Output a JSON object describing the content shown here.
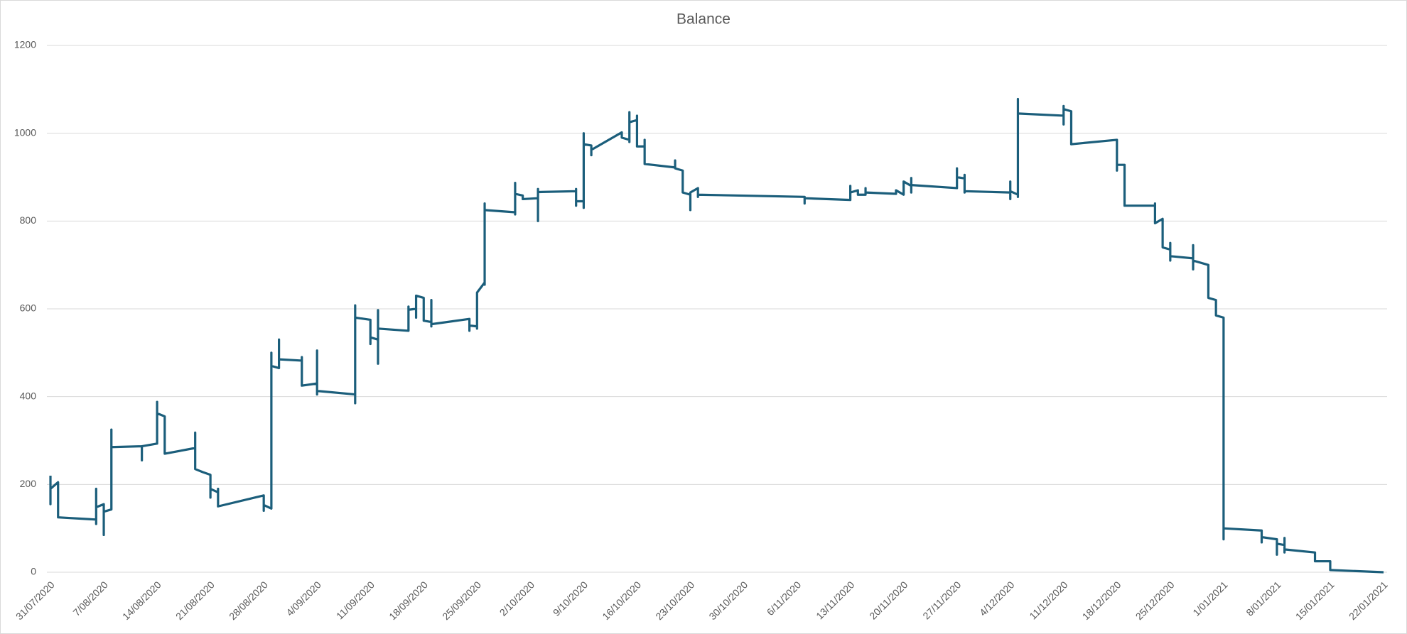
{
  "chart_data": {
    "type": "line",
    "title": "Balance",
    "color": "#1b5e7b",
    "grid": true,
    "ylim": [
      0,
      1200
    ],
    "yticks": [
      0,
      200,
      400,
      600,
      800,
      1000,
      1200
    ],
    "xlim": [
      "2020-07-31",
      "2021-01-22"
    ],
    "xticks": [
      {
        "value": "2020-07-31",
        "label": "31/07/2020"
      },
      {
        "value": "2020-08-07",
        "label": "7/08/2020"
      },
      {
        "value": "2020-08-14",
        "label": "14/08/2020"
      },
      {
        "value": "2020-08-21",
        "label": "21/08/2020"
      },
      {
        "value": "2020-08-28",
        "label": "28/08/2020"
      },
      {
        "value": "2020-09-04",
        "label": "4/09/2020"
      },
      {
        "value": "2020-09-11",
        "label": "11/09/2020"
      },
      {
        "value": "2020-09-18",
        "label": "18/09/2020"
      },
      {
        "value": "2020-09-25",
        "label": "25/09/2020"
      },
      {
        "value": "2020-10-02",
        "label": "2/10/2020"
      },
      {
        "value": "2020-10-09",
        "label": "9/10/2020"
      },
      {
        "value": "2020-10-16",
        "label": "16/10/2020"
      },
      {
        "value": "2020-10-23",
        "label": "23/10/2020"
      },
      {
        "value": "2020-10-30",
        "label": "30/10/2020"
      },
      {
        "value": "2020-11-06",
        "label": "6/11/2020"
      },
      {
        "value": "2020-11-13",
        "label": "13/11/2020"
      },
      {
        "value": "2020-11-20",
        "label": "20/11/2020"
      },
      {
        "value": "2020-11-27",
        "label": "27/11/2020"
      },
      {
        "value": "2020-12-04",
        "label": "4/12/2020"
      },
      {
        "value": "2020-12-11",
        "label": "11/12/2020"
      },
      {
        "value": "2020-12-18",
        "label": "18/12/2020"
      },
      {
        "value": "2020-12-25",
        "label": "25/12/2020"
      },
      {
        "value": "2021-01-01",
        "label": "1/01/2021"
      },
      {
        "value": "2021-01-08",
        "label": "8/01/2021"
      },
      {
        "value": "2021-01-15",
        "label": "15/01/2021"
      },
      {
        "value": "2021-01-22",
        "label": "22/01/2021"
      }
    ],
    "x": [
      "2020-07-31",
      "2020-07-31",
      "2020-07-31",
      "2020-08-01",
      "2020-08-01",
      "2020-08-06",
      "2020-08-06",
      "2020-08-06",
      "2020-08-06",
      "2020-08-07",
      "2020-08-07",
      "2020-08-07",
      "2020-08-08",
      "2020-08-08",
      "2020-08-08",
      "2020-08-12",
      "2020-08-12",
      "2020-08-12",
      "2020-08-14",
      "2020-08-14",
      "2020-08-14",
      "2020-08-15",
      "2020-08-15",
      "2020-08-19",
      "2020-08-19",
      "2020-08-19",
      "2020-08-20",
      "2020-08-21",
      "2020-08-21",
      "2020-08-21",
      "2020-08-22",
      "2020-08-22",
      "2020-08-22",
      "2020-08-28",
      "2020-08-28",
      "2020-08-28",
      "2020-08-29",
      "2020-08-29",
      "2020-08-29",
      "2020-08-30",
      "2020-08-30",
      "2020-08-30",
      "2020-09-02",
      "2020-09-02",
      "2020-09-02",
      "2020-09-04",
      "2020-09-04",
      "2020-09-04",
      "2020-09-04",
      "2020-09-09",
      "2020-09-09",
      "2020-09-09",
      "2020-09-09",
      "2020-09-11",
      "2020-09-11",
      "2020-09-11",
      "2020-09-12",
      "2020-09-12",
      "2020-09-12",
      "2020-09-12",
      "2020-09-16",
      "2020-09-16",
      "2020-09-16",
      "2020-09-17",
      "2020-09-17",
      "2020-09-17",
      "2020-09-18",
      "2020-09-18",
      "2020-09-19",
      "2020-09-19",
      "2020-09-19",
      "2020-09-19",
      "2020-09-24",
      "2020-09-24",
      "2020-09-24",
      "2020-09-25",
      "2020-09-25",
      "2020-09-25",
      "2020-09-26",
      "2020-09-26",
      "2020-09-26",
      "2020-09-26",
      "2020-09-30",
      "2020-09-30",
      "2020-09-30",
      "2020-09-30",
      "2020-10-01",
      "2020-10-01",
      "2020-10-03",
      "2020-10-03",
      "2020-10-03",
      "2020-10-03",
      "2020-10-08",
      "2020-10-08",
      "2020-10-08",
      "2020-10-08",
      "2020-10-09",
      "2020-10-09",
      "2020-10-09",
      "2020-10-09",
      "2020-10-10",
      "2020-10-10",
      "2020-10-10",
      "2020-10-14",
      "2020-10-14",
      "2020-10-15",
      "2020-10-15",
      "2020-10-15",
      "2020-10-15",
      "2020-10-16",
      "2020-10-16",
      "2020-10-16",
      "2020-10-17",
      "2020-10-17",
      "2020-10-17",
      "2020-10-21",
      "2020-10-21",
      "2020-10-21",
      "2020-10-22",
      "2020-10-22",
      "2020-10-23",
      "2020-10-23",
      "2020-10-23",
      "2020-10-24",
      "2020-10-24",
      "2020-10-24",
      "2020-11-07",
      "2020-11-07",
      "2020-11-07",
      "2020-11-13",
      "2020-11-13",
      "2020-11-13",
      "2020-11-14",
      "2020-11-14",
      "2020-11-15",
      "2020-11-15",
      "2020-11-15",
      "2020-11-19",
      "2020-11-19",
      "2020-11-20",
      "2020-11-20",
      "2020-11-21",
      "2020-11-21",
      "2020-11-21",
      "2020-11-21",
      "2020-11-27",
      "2020-11-27",
      "2020-11-27",
      "2020-11-28",
      "2020-11-28",
      "2020-11-28",
      "2020-11-28",
      "2020-12-04",
      "2020-12-04",
      "2020-12-04",
      "2020-12-04",
      "2020-12-05",
      "2020-12-05",
      "2020-12-05",
      "2020-12-05",
      "2020-12-11",
      "2020-12-11",
      "2020-12-11",
      "2020-12-11",
      "2020-12-12",
      "2020-12-12",
      "2020-12-18",
      "2020-12-18",
      "2020-12-18",
      "2020-12-19",
      "2020-12-19",
      "2020-12-23",
      "2020-12-23",
      "2020-12-23",
      "2020-12-24",
      "2020-12-24",
      "2020-12-25",
      "2020-12-25",
      "2020-12-25",
      "2020-12-25",
      "2020-12-28",
      "2020-12-28",
      "2020-12-28",
      "2020-12-28",
      "2020-12-30",
      "2020-12-30",
      "2020-12-31",
      "2020-12-31",
      "2021-01-01",
      "2021-01-01",
      "2021-01-01",
      "2021-01-06",
      "2021-01-06",
      "2021-01-06",
      "2021-01-08",
      "2021-01-08",
      "2021-01-08",
      "2021-01-09",
      "2021-01-09",
      "2021-01-09",
      "2021-01-09",
      "2021-01-13",
      "2021-01-13",
      "2021-01-15",
      "2021-01-15",
      "2021-01-22"
    ],
    "values": [
      220,
      155,
      190,
      205,
      125,
      120,
      190,
      110,
      148,
      155,
      85,
      138,
      143,
      325,
      285,
      287,
      255,
      287,
      293,
      388,
      362,
      355,
      270,
      283,
      318,
      235,
      228,
      222,
      170,
      190,
      182,
      190,
      150,
      175,
      140,
      153,
      145,
      500,
      470,
      465,
      530,
      485,
      482,
      490,
      425,
      430,
      505,
      405,
      413,
      405,
      385,
      608,
      580,
      575,
      520,
      535,
      530,
      597,
      475,
      555,
      550,
      605,
      598,
      600,
      580,
      630,
      625,
      573,
      570,
      620,
      560,
      565,
      577,
      550,
      562,
      560,
      555,
      637,
      660,
      655,
      840,
      825,
      820,
      815,
      887,
      862,
      858,
      850,
      852,
      800,
      873,
      866,
      868,
      873,
      835,
      845,
      845,
      830,
      1000,
      975,
      972,
      950,
      962,
      1002,
      990,
      985,
      980,
      1048,
      1025,
      1030,
      1040,
      970,
      970,
      985,
      930,
      922,
      938,
      920,
      915,
      865,
      860,
      825,
      865,
      875,
      855,
      860,
      855,
      840,
      852,
      848,
      880,
      865,
      870,
      860,
      860,
      875,
      865,
      862,
      870,
      860,
      890,
      880,
      898,
      865,
      882,
      875,
      920,
      900,
      897,
      905,
      865,
      868,
      865,
      890,
      850,
      868,
      860,
      855,
      1078,
      1045,
      1040,
      1062,
      1020,
      1055,
      1050,
      975,
      985,
      915,
      928,
      928,
      835,
      835,
      840,
      795,
      805,
      740,
      735,
      750,
      710,
      720,
      715,
      745,
      690,
      710,
      700,
      625,
      620,
      585,
      580,
      75,
      100,
      95,
      68,
      80,
      75,
      40,
      65,
      62,
      78,
      45,
      52,
      45,
      25,
      25,
      5,
      0
    ]
  }
}
